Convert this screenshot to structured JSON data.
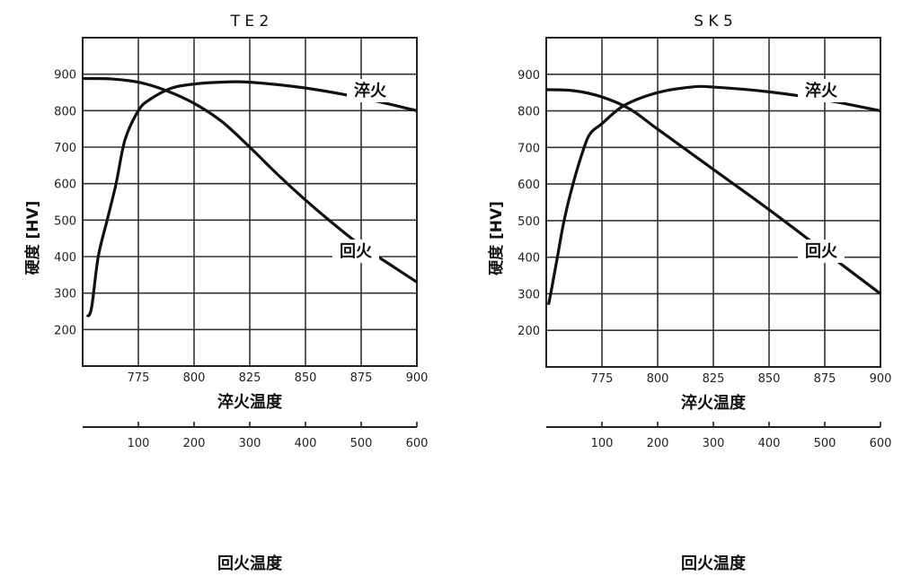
{
  "chart_data": [
    {
      "type": "line",
      "title": "T E 2",
      "ylabel": "硬度 [HV]",
      "xlabel": "淬火温度",
      "x2label": "回火温度",
      "xlim": [
        750,
        900
      ],
      "x2lim": [
        0,
        600
      ],
      "ylim": [
        100,
        1000
      ],
      "xticks": [
        775,
        800,
        825,
        850,
        875,
        900
      ],
      "x2ticks": [
        100,
        200,
        300,
        400,
        500,
        600
      ],
      "yticks": [
        200,
        300,
        400,
        500,
        600,
        700,
        800,
        900
      ],
      "grid": true,
      "series": [
        {
          "name": "淬火",
          "axis": "x",
          "x": [
            752,
            754,
            757,
            761,
            765,
            769,
            775,
            780,
            790,
            800,
            812,
            825,
            850,
            875,
            900
          ],
          "y": [
            235,
            260,
            400,
            500,
            600,
            720,
            800,
            830,
            862,
            873,
            878,
            878,
            862,
            835,
            800
          ]
        },
        {
          "name": "回火",
          "axis": "x2",
          "x": [
            0,
            50,
            100,
            150,
            200,
            250,
            300,
            350,
            400,
            450,
            500,
            550,
            600
          ],
          "y": [
            888,
            887,
            878,
            855,
            820,
            770,
            700,
            625,
            555,
            490,
            430,
            380,
            330
          ]
        }
      ]
    },
    {
      "type": "line",
      "title": "S K 5",
      "ylabel": "硬度 [HV]",
      "xlabel": "淬火温度",
      "x2label": "回火温度",
      "xlim": [
        750,
        900
      ],
      "x2lim": [
        0,
        600
      ],
      "ylim": [
        100,
        1000
      ],
      "xticks": [
        775,
        800,
        825,
        850,
        875,
        900
      ],
      "x2ticks": [
        100,
        200,
        300,
        400,
        500,
        600
      ],
      "yticks": [
        200,
        300,
        400,
        500,
        600,
        700,
        800,
        900
      ],
      "grid": true,
      "series": [
        {
          "name": "淬火",
          "axis": "x",
          "x": [
            751,
            752,
            755,
            758,
            762,
            767,
            770,
            775,
            785,
            800,
            815,
            825,
            850,
            875,
            900
          ],
          "y": [
            270,
            300,
            400,
            500,
            600,
            700,
            740,
            765,
            815,
            850,
            865,
            865,
            852,
            830,
            800
          ]
        },
        {
          "name": "回火",
          "axis": "x2",
          "x": [
            0,
            50,
            100,
            150,
            200,
            300,
            400,
            500,
            600
          ],
          "y": [
            858,
            855,
            838,
            805,
            750,
            640,
            530,
            415,
            300
          ]
        }
      ]
    }
  ]
}
